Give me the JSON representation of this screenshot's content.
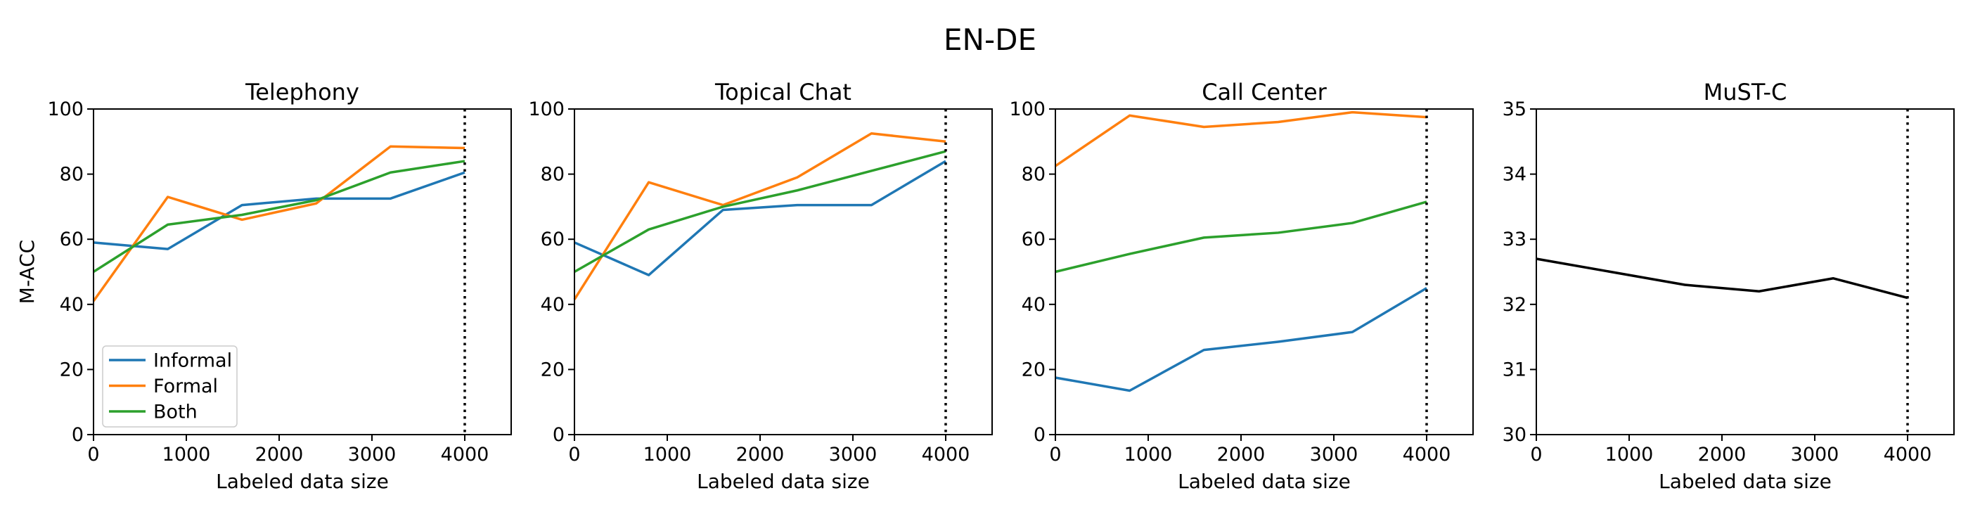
{
  "figure": {
    "suptitle": "EN-DE",
    "background": "#ffffff",
    "axis_color": "#000000"
  },
  "legend": {
    "entries": [
      {
        "label": "Informal",
        "color": "#1f77b4"
      },
      {
        "label": "Formal",
        "color": "#ff7f0e"
      },
      {
        "label": "Both",
        "color": "#2ca02c"
      }
    ],
    "position": "lower left of first subplot"
  },
  "chart_data": [
    {
      "type": "line",
      "title": "Telephony",
      "xlabel": "Labeled data size",
      "ylabel": "M-ACC",
      "x": [
        0,
        800,
        1600,
        2400,
        3200,
        4000
      ],
      "xlim": [
        0,
        4500
      ],
      "ylim": [
        0,
        100
      ],
      "xticks": [
        0,
        1000,
        2000,
        3000,
        4000
      ],
      "yticks": [
        0,
        20,
        40,
        60,
        80,
        100
      ],
      "vline_x": 4000,
      "vline_style": "dotted",
      "grid": false,
      "show_legend": true,
      "series": [
        {
          "name": "Informal",
          "color": "#1f77b4",
          "values": [
            59,
            57,
            70.5,
            72.5,
            72.5,
            80.5
          ]
        },
        {
          "name": "Formal",
          "color": "#ff7f0e",
          "values": [
            41,
            73,
            66,
            71,
            88.5,
            88
          ]
        },
        {
          "name": "Both",
          "color": "#2ca02c",
          "values": [
            50,
            64.5,
            67.5,
            72,
            80.5,
            84
          ]
        }
      ]
    },
    {
      "type": "line",
      "title": "Topical Chat",
      "xlabel": "Labeled data size",
      "ylabel": "",
      "x": [
        0,
        800,
        1600,
        2400,
        3200,
        4000
      ],
      "xlim": [
        0,
        4500
      ],
      "ylim": [
        0,
        100
      ],
      "xticks": [
        0,
        1000,
        2000,
        3000,
        4000
      ],
      "yticks": [
        0,
        20,
        40,
        60,
        80,
        100
      ],
      "vline_x": 4000,
      "vline_style": "dotted",
      "grid": false,
      "show_legend": false,
      "series": [
        {
          "name": "Informal",
          "color": "#1f77b4",
          "values": [
            59,
            49,
            69,
            70.5,
            70.5,
            84
          ]
        },
        {
          "name": "Formal",
          "color": "#ff7f0e",
          "values": [
            41.5,
            77.5,
            70.5,
            79,
            92.5,
            90
          ]
        },
        {
          "name": "Both",
          "color": "#2ca02c",
          "values": [
            50,
            63,
            70,
            75,
            81,
            87
          ]
        }
      ]
    },
    {
      "type": "line",
      "title": "Call Center",
      "xlabel": "Labeled data size",
      "ylabel": "",
      "x": [
        0,
        800,
        1600,
        2400,
        3200,
        4000
      ],
      "xlim": [
        0,
        4500
      ],
      "ylim": [
        0,
        100
      ],
      "xticks": [
        0,
        1000,
        2000,
        3000,
        4000
      ],
      "yticks": [
        0,
        20,
        40,
        60,
        80,
        100
      ],
      "vline_x": 4000,
      "vline_style": "dotted",
      "grid": false,
      "show_legend": false,
      "series": [
        {
          "name": "Informal",
          "color": "#1f77b4",
          "values": [
            17.5,
            13.5,
            26,
            28.5,
            31.5,
            45
          ]
        },
        {
          "name": "Formal",
          "color": "#ff7f0e",
          "values": [
            82.5,
            98,
            94.5,
            96,
            99,
            97.5
          ]
        },
        {
          "name": "Both",
          "color": "#2ca02c",
          "values": [
            50,
            55.5,
            60.5,
            62,
            65,
            71.5
          ]
        }
      ]
    },
    {
      "type": "line",
      "title": "MuST-C",
      "xlabel": "Labeled data size",
      "ylabel": "",
      "x": [
        0,
        800,
        1600,
        2400,
        3200,
        4000
      ],
      "xlim": [
        0,
        4500
      ],
      "ylim": [
        30,
        35
      ],
      "xticks": [
        0,
        1000,
        2000,
        3000,
        4000
      ],
      "yticks": [
        30,
        31,
        32,
        33,
        34,
        35
      ],
      "vline_x": 4000,
      "vline_style": "dotted",
      "grid": false,
      "show_legend": false,
      "series": [
        {
          "name": "MuST-C",
          "color": "#000000",
          "values": [
            32.7,
            32.5,
            32.3,
            32.2,
            32.4,
            32.1
          ]
        }
      ]
    }
  ]
}
